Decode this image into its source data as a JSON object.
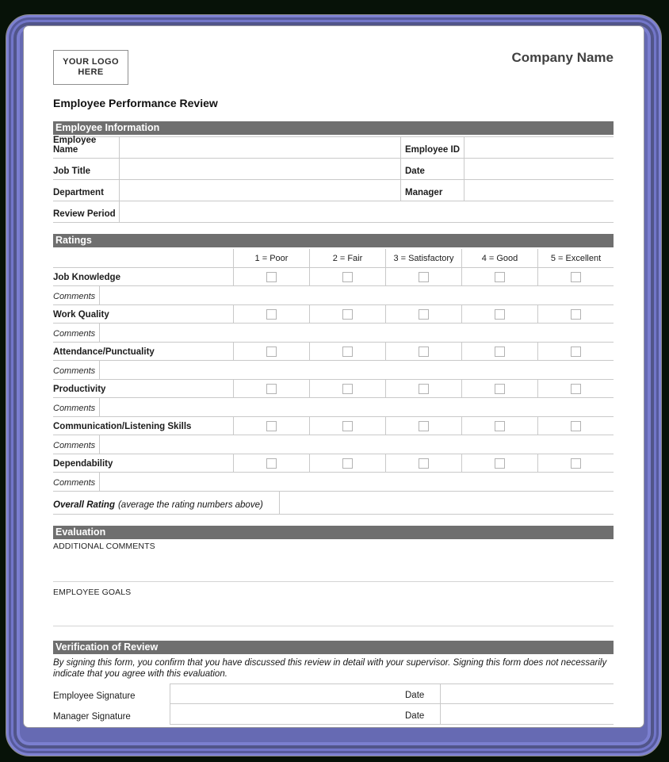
{
  "colors": {
    "outer_background": "#071208",
    "frame_purple": "#6d71c4",
    "section_bar": "#6f6f6f",
    "table_border": "#c9c9c9",
    "page_background": "#ffffff"
  },
  "header": {
    "logo_line1": "YOUR LOGO",
    "logo_line2": "HERE",
    "company_name": "Company Name",
    "form_title": "Employee Performance Review"
  },
  "sections": {
    "employee_information": {
      "title": "Employee Information",
      "fields_left": [
        "Employee Name",
        "Job Title",
        "Department",
        "Review Period"
      ],
      "fields_right": [
        "Employee ID",
        "Date",
        "Manager"
      ]
    },
    "ratings": {
      "title": "Ratings",
      "scale": [
        "1 = Poor",
        "2 = Fair",
        "3 = Satisfactory",
        "4 = Good",
        "5 = Excellent"
      ],
      "criteria": [
        "Job Knowledge",
        "Work Quality",
        "Attendance/Punctuality",
        "Productivity",
        "Communication/Listening Skills",
        "Dependability"
      ],
      "comments_label": "Comments",
      "overall_label": "Overall Rating",
      "overall_note": "(average the rating numbers above)"
    },
    "evaluation": {
      "title": "Evaluation",
      "additional_comments_label": "ADDITIONAL COMMENTS",
      "employee_goals_label": "EMPLOYEE GOALS"
    },
    "verification": {
      "title": "Verification of Review",
      "disclaimer": "By signing this form, you confirm that you have discussed this review in detail with your supervisor. Signing this form does not necessarily indicate that you agree with this evaluation.",
      "signature_rows": [
        {
          "label": "Employee Signature",
          "date_label": "Date"
        },
        {
          "label": "Manager Signature",
          "date_label": "Date"
        }
      ]
    }
  }
}
